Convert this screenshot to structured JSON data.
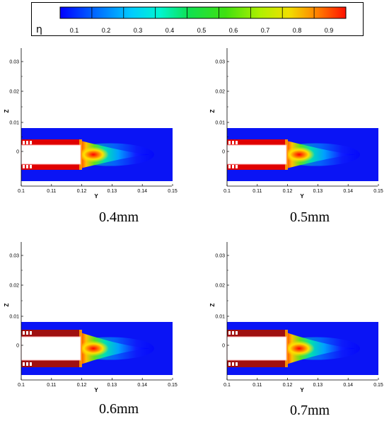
{
  "legend": {
    "symbol": "η",
    "ticks": [
      "0.1",
      "0.2",
      "0.3",
      "0.4",
      "0.5",
      "0.6",
      "0.7",
      "0.8",
      "0.9"
    ],
    "colors": [
      "#0000ff",
      "#0078ff",
      "#00e0ff",
      "#00f0a0",
      "#10e030",
      "#7cf000",
      "#e8f000",
      "#ff9000",
      "#ff2000"
    ]
  },
  "axes": {
    "xlabel": "Y",
    "ylabel": "Z",
    "xticks": [
      "0.1",
      "0.11",
      "0.12",
      "0.13",
      "0.14",
      "0.15"
    ],
    "yticks": [
      "0.03",
      "0.02",
      "0.01",
      "0"
    ]
  },
  "panels": [
    {
      "caption": "0.4mm",
      "wall_color": "#e00000"
    },
    {
      "caption": "0.5mm",
      "wall_color": "#e00000"
    },
    {
      "caption": "0.6mm",
      "wall_color": "#a01010"
    },
    {
      "caption": "0.7mm",
      "wall_color": "#a01010"
    }
  ]
}
